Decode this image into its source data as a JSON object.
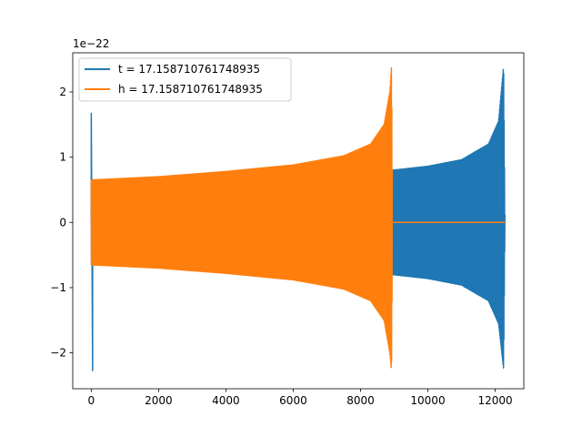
{
  "chart_data": {
    "type": "line",
    "title": "",
    "xlabel": "",
    "ylabel": "",
    "y_offset_label": "1e−22",
    "xlim": [
      -550,
      12850
    ],
    "ylim": [
      -2.55,
      2.6
    ],
    "xticks": [
      0,
      2000,
      4000,
      6000,
      8000,
      10000,
      12000
    ],
    "xtick_labels": [
      "0",
      "2000",
      "4000",
      "6000",
      "8000",
      "10000",
      "12000"
    ],
    "yticks": [
      -2,
      -1,
      0,
      1,
      2
    ],
    "ytick_labels": [
      "−2",
      "−1",
      "0",
      "1",
      "2"
    ],
    "grid": false,
    "legend_position": "top-left",
    "series": [
      {
        "name": "t = 17.158710761748935",
        "color": "#1f77b4",
        "description_points": {
          "spike_x": [
            0,
            40
          ],
          "spike_values": [
            1.68,
            -2.28
          ],
          "envelope_x": [
            0,
            2000,
            4000,
            6000,
            8000,
            8950,
            10000,
            11000,
            11800,
            12100,
            12250,
            12290
          ],
          "envelope_upper": [
            0.65,
            0.68,
            0.72,
            0.76,
            0.8,
            0.8,
            0.86,
            0.96,
            1.2,
            1.55,
            2.4,
            0
          ],
          "envelope_lower": [
            -0.65,
            -0.68,
            -0.72,
            -0.76,
            -0.8,
            -0.8,
            -0.86,
            -0.96,
            -1.2,
            -1.55,
            -2.25,
            0
          ]
        }
      },
      {
        "name": "h = 17.158710761748935",
        "color": "#ff7f0e",
        "description_points": {
          "envelope_x": [
            0,
            2000,
            4000,
            6000,
            7500,
            8300,
            8700,
            8870,
            8920,
            8950,
            12290
          ],
          "envelope_upper": [
            0.65,
            0.7,
            0.78,
            0.88,
            1.02,
            1.2,
            1.5,
            2.0,
            2.4,
            0,
            0
          ],
          "envelope_lower": [
            -0.65,
            -0.7,
            -0.78,
            -0.88,
            -1.02,
            -1.2,
            -1.5,
            -2.0,
            -2.28,
            0,
            0
          ]
        }
      }
    ]
  },
  "colors": {
    "series_0": "#1f77b4",
    "series_1": "#ff7f0e",
    "axes": "#000000"
  }
}
